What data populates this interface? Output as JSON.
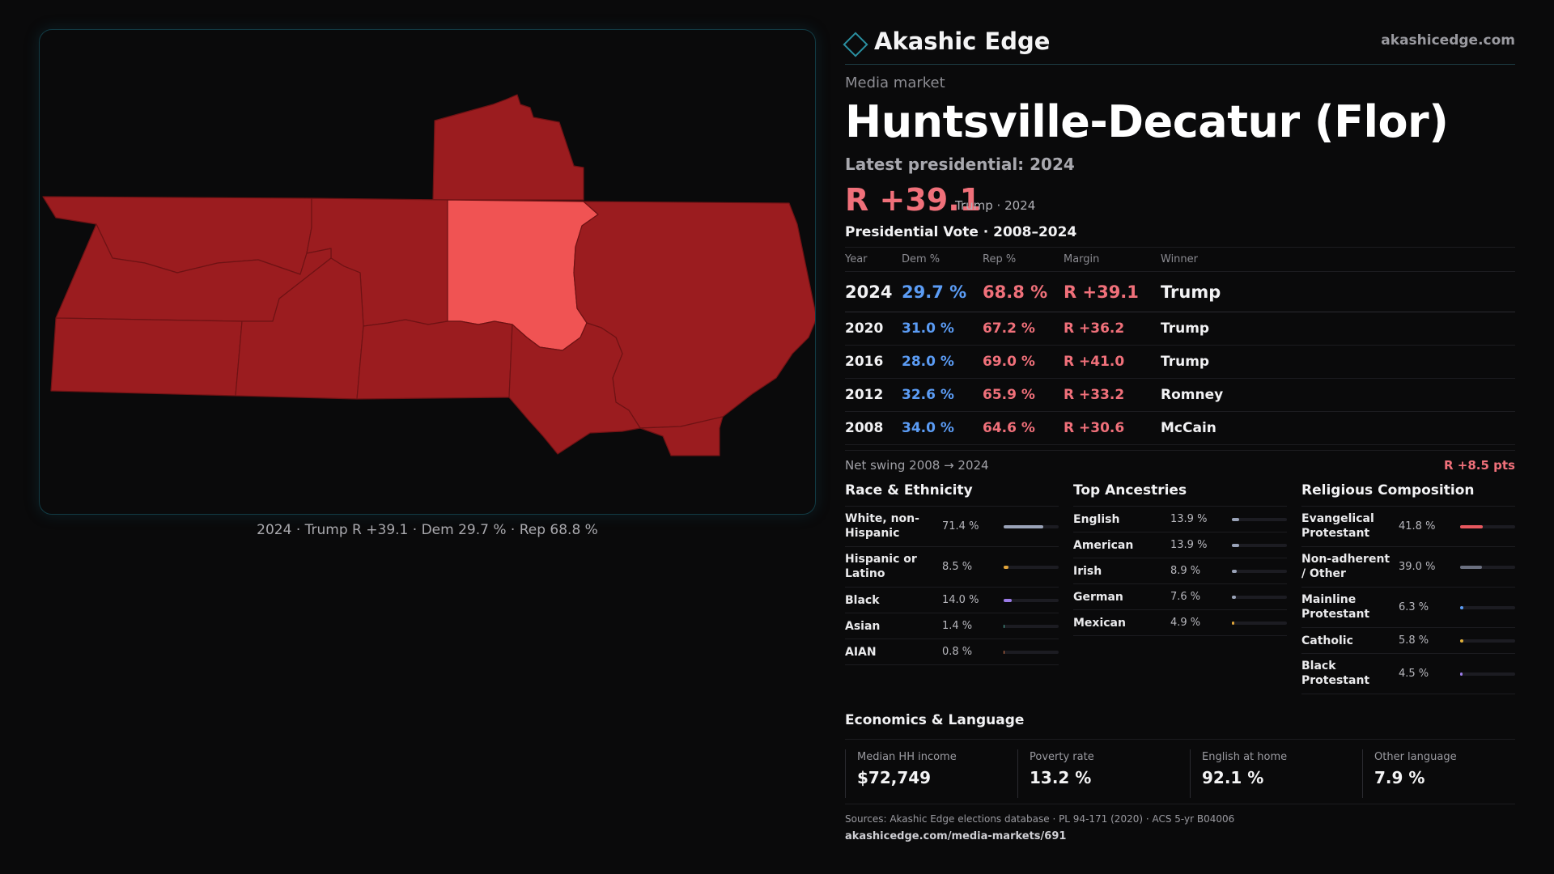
{
  "brand": {
    "name": "Akashic Edge",
    "url": "akashicedge.com"
  },
  "kicker": "Media market",
  "title": "Huntsville-Decatur (Flor)",
  "latest_label": "Latest presidential: 2024",
  "latest_margin": "R +39.1",
  "latest_sub": "Trump · 2024",
  "map": {
    "caption": "2024 · Trump R +39.1 · Dem 29.7 % · Rep 68.8 %",
    "colors": {
      "strong_rep": "#9b1c1f",
      "lean_rep": "#f05353",
      "border": "#6e1214",
      "panel_border": "#123b44"
    }
  },
  "votes": {
    "title": "Presidential Vote · 2008–2024",
    "headers": {
      "year": "Year",
      "dem": "Dem %",
      "rep": "Rep %",
      "margin": "Margin",
      "winner": "Winner"
    },
    "rows": [
      {
        "year": "2024",
        "dem": "29.7 %",
        "rep": "68.8 %",
        "margin": "R +39.1",
        "winner": "Trump"
      },
      {
        "year": "2020",
        "dem": "31.0 %",
        "rep": "67.2 %",
        "margin": "R +36.2",
        "winner": "Trump"
      },
      {
        "year": "2016",
        "dem": "28.0 %",
        "rep": "69.0 %",
        "margin": "R +41.0",
        "winner": "Trump"
      },
      {
        "year": "2012",
        "dem": "32.6 %",
        "rep": "65.9 %",
        "margin": "R +33.2",
        "winner": "Romney"
      },
      {
        "year": "2008",
        "dem": "34.0 %",
        "rep": "64.6 %",
        "margin": "R +30.6",
        "winner": "McCain"
      }
    ]
  },
  "swing": {
    "label": "Net swing 2008 → 2024",
    "value": "R +8.5 pts"
  },
  "race": {
    "title": "Race & Ethnicity",
    "items": [
      {
        "label": "White, non-Hispanic",
        "pct": "71.4 %",
        "value": 71.4,
        "color": "#9aa3b8"
      },
      {
        "label": "Hispanic or Latino",
        "pct": "8.5 %",
        "value": 8.5,
        "color": "#e0a43a"
      },
      {
        "label": "Black",
        "pct": "14.0 %",
        "value": 14.0,
        "color": "#9b7be8"
      },
      {
        "label": "Asian",
        "pct": "1.4 %",
        "value": 1.4,
        "color": "#4fb3a0"
      },
      {
        "label": "AIAN",
        "pct": "0.8 %",
        "value": 0.8,
        "color": "#d9774b"
      }
    ]
  },
  "ancestry": {
    "title": "Top Ancestries",
    "items": [
      {
        "label": "English",
        "pct": "13.9 %",
        "value": 13.9,
        "color": "#9aa3b8"
      },
      {
        "label": "American",
        "pct": "13.9 %",
        "value": 13.9,
        "color": "#9aa3b8"
      },
      {
        "label": "Irish",
        "pct": "8.9 %",
        "value": 8.9,
        "color": "#9aa3b8"
      },
      {
        "label": "German",
        "pct": "7.6 %",
        "value": 7.6,
        "color": "#9aa3b8"
      },
      {
        "label": "Mexican",
        "pct": "4.9 %",
        "value": 4.9,
        "color": "#e0a43a"
      }
    ]
  },
  "religion": {
    "title": "Religious Composition",
    "items": [
      {
        "label": "Evangelical Protestant",
        "pct": "41.8 %",
        "value": 41.8,
        "color": "#e8585f"
      },
      {
        "label": "Non-adherent / Other",
        "pct": "39.0 %",
        "value": 39.0,
        "color": "#6b7080"
      },
      {
        "label": "Mainline Protestant",
        "pct": "6.3 %",
        "value": 6.3,
        "color": "#5b9cf5"
      },
      {
        "label": "Catholic",
        "pct": "5.8 %",
        "value": 5.8,
        "color": "#e0b03a"
      },
      {
        "label": "Black Protestant",
        "pct": "4.5 %",
        "value": 4.5,
        "color": "#9b7be8"
      }
    ]
  },
  "economics": {
    "title": "Economics & Language",
    "cards": [
      {
        "label": "Median HH income",
        "value": "$72,749"
      },
      {
        "label": "Poverty rate",
        "value": "13.2 %"
      },
      {
        "label": "English at home",
        "value": "92.1 %"
      },
      {
        "label": "Other language",
        "value": "7.9 %"
      }
    ]
  },
  "sources": "Sources: Akashic Edge elections database · PL 94-171 (2020) · ACS 5-yr B04006",
  "source_url": "akashicedge.com/media-markets/691"
}
